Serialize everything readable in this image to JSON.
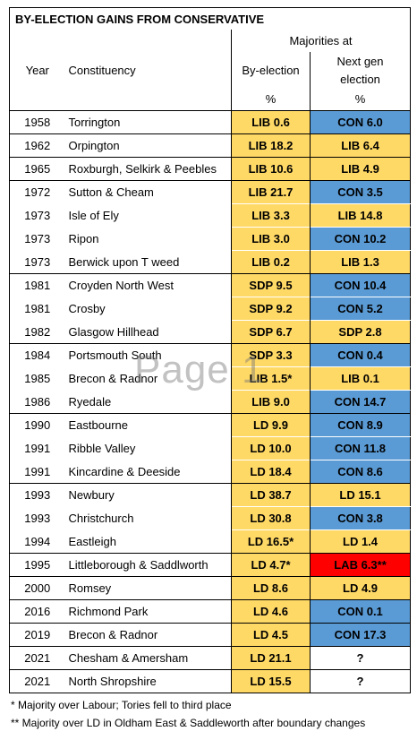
{
  "title": "BY-ELECTION GAINS FROM CONSERVATIVE",
  "header": {
    "majorities_at": "Majorities at",
    "year": "Year",
    "constituency": "Constituency",
    "by_election": "By-election",
    "next_gen_line1": "Next gen",
    "next_gen_line2": "election",
    "pct1": "%",
    "pct2": "%"
  },
  "rows": [
    {
      "year": "1958",
      "constituency": "Torrington",
      "by": "LIB 0.6",
      "by_color": "lib",
      "next": "CON 6.0",
      "next_color": "con",
      "group_start": true
    },
    {
      "year": "1962",
      "constituency": "Orpington",
      "by": "LIB 18.2",
      "by_color": "lib",
      "next": "LIB 6.4",
      "next_color": "lib",
      "group_start": true
    },
    {
      "year": "1965",
      "constituency": "Roxburgh, Selkirk & Peebles",
      "by": "LIB 10.6",
      "by_color": "lib",
      "next": "LIB 4.9",
      "next_color": "lib",
      "group_start": true
    },
    {
      "year": "1972",
      "constituency": "Sutton & Cheam",
      "by": "LIB 21.7",
      "by_color": "lib",
      "next": "CON 3.5",
      "next_color": "con",
      "group_start": true
    },
    {
      "year": "1973",
      "constituency": "Isle of Ely",
      "by": "LIB 3.3",
      "by_color": "lib",
      "next": "LIB 14.8",
      "next_color": "lib",
      "group_start": false
    },
    {
      "year": "1973",
      "constituency": "Ripon",
      "by": "LIB 3.0",
      "by_color": "lib",
      "next": "CON 10.2",
      "next_color": "con",
      "group_start": false
    },
    {
      "year": "1973",
      "constituency": "Berwick upon T weed",
      "by": "LIB 0.2",
      "by_color": "lib",
      "next": "LIB 1.3",
      "next_color": "lib",
      "group_start": false
    },
    {
      "year": "1981",
      "constituency": "Croyden North West",
      "by": "SDP 9.5",
      "by_color": "lib",
      "next": "CON 10.4",
      "next_color": "con",
      "group_start": true
    },
    {
      "year": "1981",
      "constituency": "Crosby",
      "by": "SDP 9.2",
      "by_color": "lib",
      "next": "CON 5.2",
      "next_color": "con",
      "group_start": false
    },
    {
      "year": "1982",
      "constituency": "Glasgow Hillhead",
      "by": "SDP 6.7",
      "by_color": "lib",
      "next": "SDP 2.8",
      "next_color": "lib",
      "group_start": false
    },
    {
      "year": "1984",
      "constituency": "Portsmouth South",
      "by": "SDP 3.3",
      "by_color": "lib",
      "next": "CON 0.4",
      "next_color": "con",
      "group_start": true
    },
    {
      "year": "1985",
      "constituency": "Brecon & Radnor",
      "by": "LIB 1.5*",
      "by_color": "lib",
      "next": "LIB 0.1",
      "next_color": "lib",
      "group_start": false
    },
    {
      "year": "1986",
      "constituency": "Ryedale",
      "by": "LIB 9.0",
      "by_color": "lib",
      "next": "CON 14.7",
      "next_color": "con",
      "group_start": false
    },
    {
      "year": "1990",
      "constituency": "Eastbourne",
      "by": "LD 9.9",
      "by_color": "lib",
      "next": "CON 8.9",
      "next_color": "con",
      "group_start": true
    },
    {
      "year": "1991",
      "constituency": "Ribble Valley",
      "by": "LD 10.0",
      "by_color": "lib",
      "next": "CON 11.8",
      "next_color": "con",
      "group_start": false
    },
    {
      "year": "1991",
      "constituency": "Kincardine & Deeside",
      "by": "LD 18.4",
      "by_color": "lib",
      "next": "CON 8.6",
      "next_color": "con",
      "group_start": false
    },
    {
      "year": "1993",
      "constituency": "Newbury",
      "by": "LD 38.7",
      "by_color": "lib",
      "next": "LD 15.1",
      "next_color": "lib",
      "group_start": true
    },
    {
      "year": "1993",
      "constituency": "Christchurch",
      "by": "LD 30.8",
      "by_color": "lib",
      "next": "CON 3.8",
      "next_color": "con",
      "group_start": false
    },
    {
      "year": "1994",
      "constituency": "Eastleigh",
      "by": "LD 16.5*",
      "by_color": "lib",
      "next": "LD 1.4",
      "next_color": "lib",
      "group_start": false
    },
    {
      "year": "1995",
      "constituency": "Littleborough & Saddlworth",
      "by": "LD 4.7*",
      "by_color": "lib",
      "next": "LAB 6.3**",
      "next_color": "lab",
      "group_start": true
    },
    {
      "year": "2000",
      "constituency": "Romsey",
      "by": "LD 8.6",
      "by_color": "lib",
      "next": "LD 4.9",
      "next_color": "lib",
      "group_start": true
    },
    {
      "year": "2016",
      "constituency": "Richmond Park",
      "by": "LD 4.6",
      "by_color": "lib",
      "next": "CON 0.1",
      "next_color": "con",
      "group_start": true
    },
    {
      "year": "2019",
      "constituency": "Brecon & Radnor",
      "by": "LD 4.5",
      "by_color": "lib",
      "next": "CON 17.3",
      "next_color": "con",
      "group_start": true
    },
    {
      "year": "2021",
      "constituency": "Chesham & Amersham",
      "by": "LD 21.1",
      "by_color": "lib",
      "next": "?",
      "next_color": "white",
      "group_start": true
    },
    {
      "year": "2021",
      "constituency": "North Shropshire",
      "by": "LD 15.5",
      "by_color": "lib",
      "next": "?",
      "next_color": "white",
      "group_start": true
    }
  ],
  "notes": [
    "* Majority over Labour; Tories fell to third place",
    "** Majority over LD in Oldham East & Saddleworth after boundary changes"
  ],
  "watermark": "Page 1",
  "colors": {
    "lib": "#ffd966",
    "con": "#5b9bd5",
    "lab": "#ff0000"
  }
}
